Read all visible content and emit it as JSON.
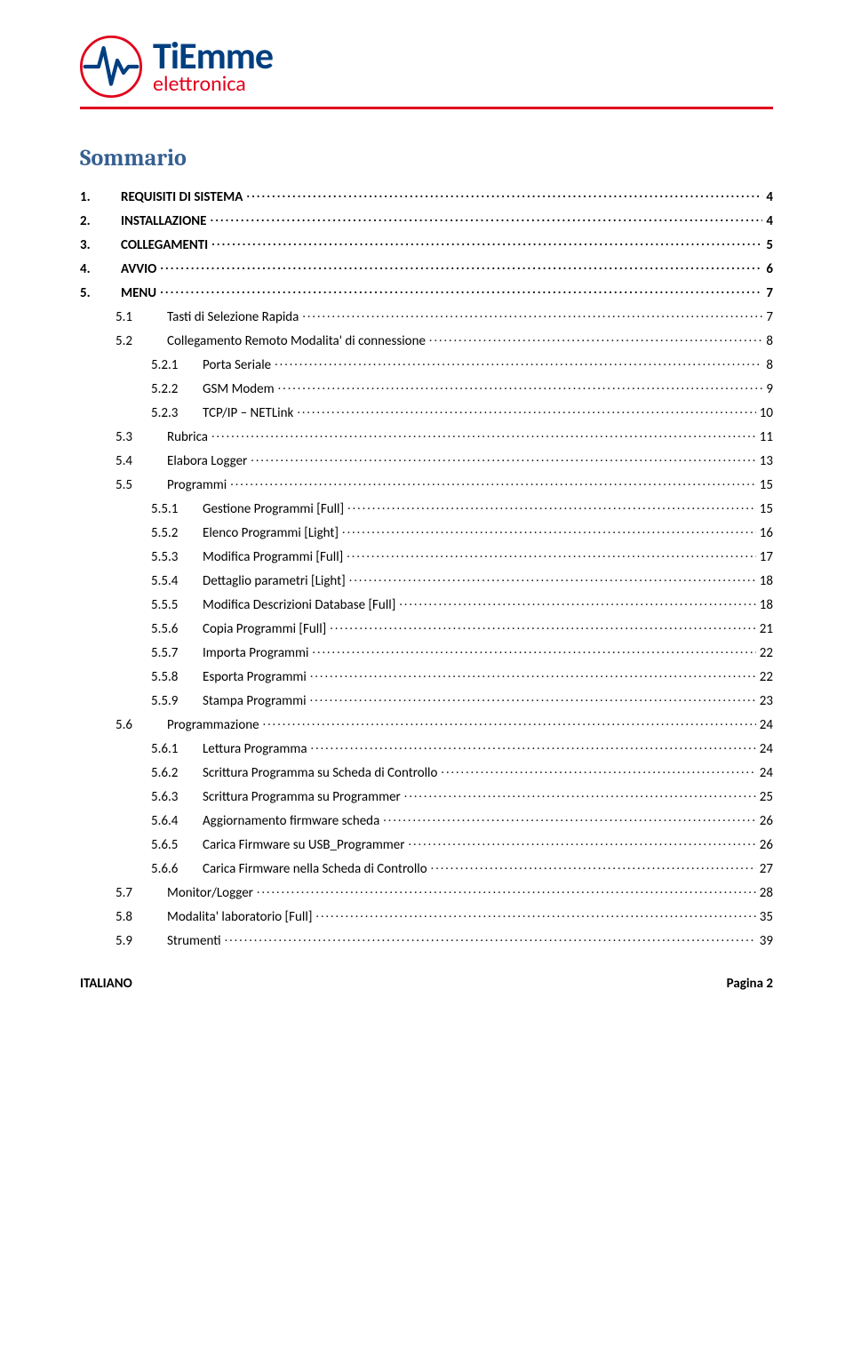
{
  "logo": {
    "main": "TiEmme",
    "sub": "elettronica",
    "main_color": "#003f7f",
    "sub_color": "#e2001a"
  },
  "title": "Sommario",
  "toc": [
    {
      "level": 1,
      "num": "1.",
      "label": "REQUISITI DI SISTEMA",
      "page": "4"
    },
    {
      "level": 1,
      "num": "2.",
      "label": "INSTALLAZIONE",
      "page": "4"
    },
    {
      "level": 1,
      "num": "3.",
      "label": "COLLEGAMENTI",
      "page": "5"
    },
    {
      "level": 1,
      "num": "4.",
      "label": "AVVIO",
      "page": "6"
    },
    {
      "level": 1,
      "num": "5.",
      "label": "MENU",
      "page": "7"
    },
    {
      "level": 2,
      "num": "5.1",
      "label": "Tasti di Selezione Rapida",
      "page": "7"
    },
    {
      "level": 2,
      "num": "5.2",
      "label": "Collegamento Remoto Modalita' di connessione",
      "page": "8"
    },
    {
      "level": 3,
      "num": "5.2.1",
      "label": "Porta Seriale",
      "page": "8"
    },
    {
      "level": 3,
      "num": "5.2.2",
      "label": "GSM Modem",
      "page": "9"
    },
    {
      "level": 3,
      "num": "5.2.3",
      "label": "TCP/IP – NETLink",
      "page": "10"
    },
    {
      "level": 2,
      "num": "5.3",
      "label": "Rubrica",
      "page": "11"
    },
    {
      "level": 2,
      "num": "5.4",
      "label": "Elabora Logger",
      "page": "13"
    },
    {
      "level": 2,
      "num": "5.5",
      "label": "Programmi",
      "page": "15"
    },
    {
      "level": 3,
      "num": "5.5.1",
      "label": "Gestione Programmi [Full]",
      "page": "15"
    },
    {
      "level": 3,
      "num": "5.5.2",
      "label": "Elenco Programmi [Light]",
      "page": "16"
    },
    {
      "level": 3,
      "num": "5.5.3",
      "label": "Modifica Programmi [Full]",
      "page": "17"
    },
    {
      "level": 3,
      "num": "5.5.4",
      "label": "Dettaglio parametri [Light]",
      "page": "18"
    },
    {
      "level": 3,
      "num": "5.5.5",
      "label": "Modifica Descrizioni Database [Full]",
      "page": "18"
    },
    {
      "level": 3,
      "num": "5.5.6",
      "label": "Copia Programmi [Full]",
      "page": "21"
    },
    {
      "level": 3,
      "num": "5.5.7",
      "label": "Importa Programmi",
      "page": "22"
    },
    {
      "level": 3,
      "num": "5.5.8",
      "label": "Esporta Programmi",
      "page": "22"
    },
    {
      "level": 3,
      "num": "5.5.9",
      "label": "Stampa Programmi",
      "page": "23"
    },
    {
      "level": 2,
      "num": "5.6",
      "label": "Programmazione",
      "page": "24"
    },
    {
      "level": 3,
      "num": "5.6.1",
      "label": "Lettura Programma",
      "page": "24"
    },
    {
      "level": 3,
      "num": "5.6.2",
      "label": "Scrittura Programma su Scheda di Controllo",
      "page": "24"
    },
    {
      "level": 3,
      "num": "5.6.3",
      "label": "Scrittura Programma su Programmer",
      "page": "25"
    },
    {
      "level": 3,
      "num": "5.6.4",
      "label": "Aggiornamento firmware scheda",
      "page": "26"
    },
    {
      "level": 3,
      "num": "5.6.5",
      "label": "Carica Firmware su USB_Programmer",
      "page": "26"
    },
    {
      "level": 3,
      "num": "5.6.6",
      "label": "Carica Firmware nella Scheda di Controllo",
      "page": "27"
    },
    {
      "level": 2,
      "num": "5.7",
      "label": "Monitor/Logger",
      "page": "28"
    },
    {
      "level": 2,
      "num": "5.8",
      "label": "Modalita' laboratorio [Full]",
      "page": "35"
    },
    {
      "level": 2,
      "num": "5.9",
      "label": "Strumenti",
      "page": "39"
    }
  ],
  "footer": {
    "left": "ITALIANO",
    "right": "Pagina 2"
  }
}
